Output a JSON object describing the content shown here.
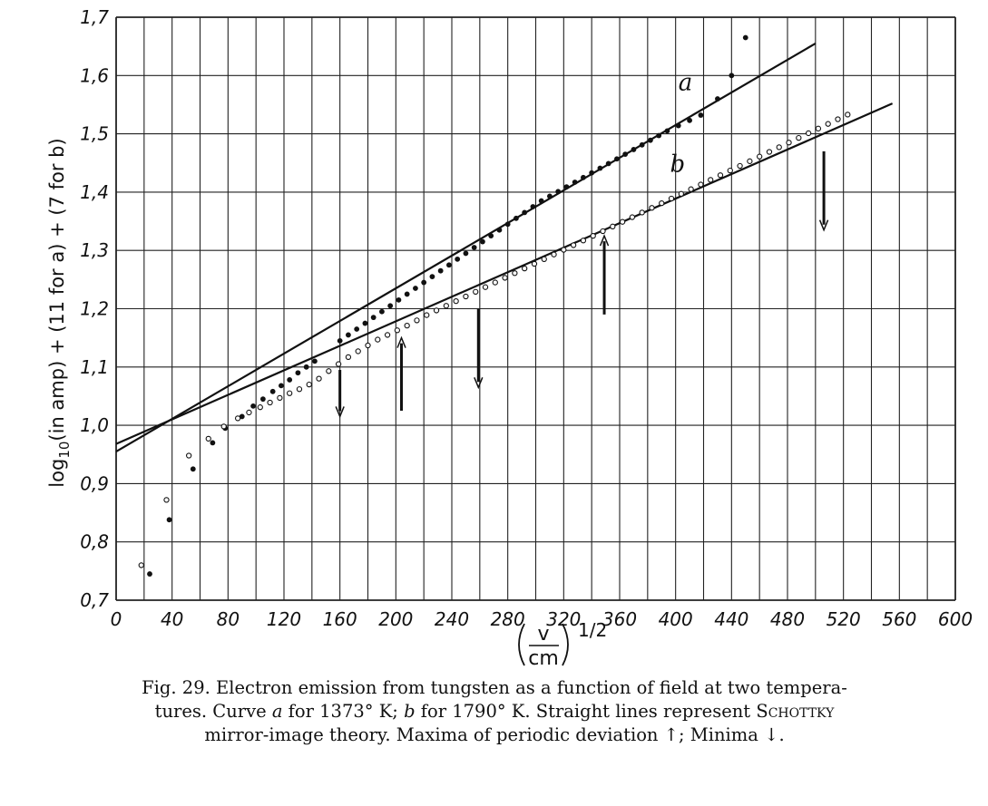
{
  "chart_data": {
    "type": "scatter",
    "xlabel": "(v/cm)^1/2",
    "xlabel_parts": {
      "num": "v",
      "den": "cm",
      "exp": "1/2"
    },
    "ylabel": "log10(in amp)+(11 for a)+(7 for b)",
    "ylabel_parts": {
      "pre": "log",
      "sub": "10",
      "post": "(in amp) + (11 for a) + (7 for b)"
    },
    "xlim": [
      0,
      600
    ],
    "ylim": [
      0.7,
      1.7
    ],
    "x_ticks": [
      "0",
      "40",
      "80",
      "120",
      "160",
      "200",
      "240",
      "280",
      "320",
      "360",
      "400",
      "440",
      "480",
      "520",
      "560",
      "600"
    ],
    "y_ticks": [
      "0,7",
      "0,8",
      "0,9",
      "1,0",
      "1,1",
      "1,2",
      "1,3",
      "1,4",
      "1,5",
      "1,6",
      "1,7"
    ],
    "x_grid_step": 20,
    "y_grid_step": 0.1,
    "grid": true,
    "series": [
      {
        "name": "a",
        "marker": "filled",
        "x": [
          24,
          38,
          55,
          69,
          78,
          90,
          98,
          105,
          112,
          118,
          124,
          130,
          136,
          142,
          160,
          166,
          172,
          178,
          184,
          190,
          196,
          202,
          208,
          214,
          220,
          226,
          232,
          238,
          244,
          250,
          256,
          262,
          268,
          274,
          280,
          286,
          292,
          298,
          304,
          310,
          316,
          322,
          328,
          334,
          340,
          346,
          352,
          358,
          364,
          370,
          376,
          382,
          388,
          394,
          402,
          410,
          418,
          430,
          440,
          450
        ],
        "y": [
          0.745,
          0.838,
          0.925,
          0.97,
          0.995,
          1.015,
          1.033,
          1.045,
          1.058,
          1.068,
          1.078,
          1.09,
          1.1,
          1.11,
          1.145,
          1.155,
          1.165,
          1.175,
          1.185,
          1.195,
          1.205,
          1.215,
          1.225,
          1.235,
          1.245,
          1.255,
          1.265,
          1.275,
          1.285,
          1.295,
          1.305,
          1.315,
          1.325,
          1.335,
          1.345,
          1.355,
          1.365,
          1.375,
          1.385,
          1.393,
          1.401,
          1.409,
          1.417,
          1.425,
          1.433,
          1.441,
          1.449,
          1.457,
          1.465,
          1.473,
          1.481,
          1.489,
          1.497,
          1.505,
          1.514,
          1.523,
          1.532,
          1.56,
          1.6,
          1.665
        ]
      },
      {
        "name": "b",
        "marker": "open",
        "x": [
          18,
          36,
          52,
          66,
          77,
          87,
          95,
          103,
          110,
          117,
          124,
          131,
          138,
          145,
          152,
          159,
          166,
          173,
          180,
          187,
          194,
          201,
          208,
          215,
          222,
          229,
          236,
          243,
          250,
          257,
          264,
          271,
          278,
          285,
          292,
          299,
          306,
          313,
          320,
          327,
          334,
          341,
          348,
          355,
          362,
          369,
          376,
          383,
          390,
          397,
          404,
          411,
          418,
          425,
          432,
          439,
          446,
          453,
          460,
          467,
          474,
          481,
          488,
          495,
          502,
          509,
          516,
          523
        ],
        "y": [
          0.76,
          0.872,
          0.948,
          0.977,
          0.998,
          1.012,
          1.022,
          1.031,
          1.039,
          1.047,
          1.055,
          1.062,
          1.07,
          1.08,
          1.093,
          1.105,
          1.117,
          1.127,
          1.137,
          1.147,
          1.155,
          1.163,
          1.171,
          1.18,
          1.189,
          1.197,
          1.205,
          1.213,
          1.221,
          1.229,
          1.237,
          1.245,
          1.253,
          1.261,
          1.269,
          1.277,
          1.285,
          1.293,
          1.301,
          1.309,
          1.317,
          1.325,
          1.333,
          1.341,
          1.349,
          1.357,
          1.365,
          1.373,
          1.381,
          1.389,
          1.397,
          1.405,
          1.413,
          1.421,
          1.429,
          1.437,
          1.445,
          1.453,
          1.461,
          1.469,
          1.477,
          1.485,
          1.493,
          1.501,
          1.509,
          1.517,
          1.525,
          1.533
        ]
      }
    ],
    "lines": [
      {
        "name": "a",
        "x": [
          0,
          500
        ],
        "y": [
          0.955,
          1.655
        ]
      },
      {
        "name": "b",
        "x": [
          0,
          555
        ],
        "y": [
          0.968,
          1.552
        ]
      }
    ],
    "curve_labels": [
      {
        "text": "a",
        "x": 402,
        "y": 1.575
      },
      {
        "text": "b",
        "x": 396,
        "y": 1.435
      }
    ],
    "arrows": [
      {
        "type": "minimum",
        "x": 160,
        "y_from": 1.095,
        "y_to": 1.015
      },
      {
        "type": "maximum",
        "x": 204,
        "y_from": 1.025,
        "y_to": 1.15
      },
      {
        "type": "minimum",
        "x": 259,
        "y_from": 1.2,
        "y_to": 1.065
      },
      {
        "type": "maximum",
        "x": 349,
        "y_from": 1.19,
        "y_to": 1.325
      },
      {
        "type": "minimum",
        "x": 506,
        "y_from": 1.47,
        "y_to": 1.335
      }
    ]
  },
  "caption": {
    "line1": "Fig. 29. Electron emission from tungsten as a function of field at two tempera-",
    "line2_pre": "tures. Curve ",
    "line2_a": "a",
    "line2_mid": " for 1373° K; ",
    "line2_b": "b",
    "line2_post": " for 1790° K. Straight lines represent ",
    "line2_name": "Schottky",
    "line3": "mirror-image theory. Maxima of periodic deviation ↑; Minima ↓."
  }
}
